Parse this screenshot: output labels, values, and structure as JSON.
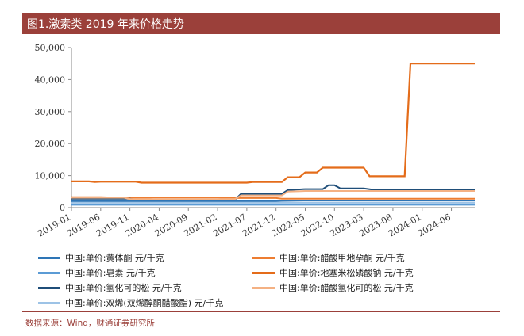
{
  "header": {
    "title": "图1.激素类 2019 年来价格走势"
  },
  "footer": {
    "source": "数据来源：Wind，财通证券研究所"
  },
  "colors": {
    "title_bg": "#9b403a",
    "axis": "#888888",
    "grid": "#d9d9d9"
  },
  "chart_data": {
    "type": "line",
    "title": "",
    "xlabel": "",
    "ylabel": "",
    "ylim": [
      0,
      50000
    ],
    "yticks": [
      0,
      10000,
      20000,
      30000,
      40000,
      50000
    ],
    "ytick_labels": [
      "0",
      "10,000",
      "20,000",
      "30,000",
      "40,000",
      "50,000"
    ],
    "xlim": [
      "2019-01",
      "2024-10"
    ],
    "xticks": [
      "2019-01",
      "2019-06",
      "2019-11",
      "2020-04",
      "2020-09",
      "2021-02",
      "2021-07",
      "2021-12",
      "2022-05",
      "2022-10",
      "2023-03",
      "2023-08",
      "2024-01",
      "2024-06"
    ],
    "grid": false,
    "legend_position": "bottom",
    "series": [
      {
        "name": "中国:单价:黄体酮 元/千克",
        "color": "#2e75b6",
        "width": 2,
        "points": [
          [
            "2019-01",
            2000
          ],
          [
            "2021-12",
            2000
          ],
          [
            "2022-01",
            2100
          ],
          [
            "2022-05",
            2200
          ],
          [
            "2024-10",
            2200
          ]
        ]
      },
      {
        "name": "中国:单价:醋酸甲地孕酮 元/千克",
        "color": "#ed7d31",
        "width": 2,
        "points": [
          [
            "2019-01",
            3300
          ],
          [
            "2019-06",
            3300
          ],
          [
            "2019-11",
            3000
          ],
          [
            "2020-02",
            3000
          ],
          [
            "2020-03",
            3200
          ],
          [
            "2021-02",
            3200
          ],
          [
            "2021-03",
            3000
          ],
          [
            "2021-12",
            3000
          ],
          [
            "2022-01",
            2800
          ],
          [
            "2022-07",
            2800
          ],
          [
            "2024-10",
            2800
          ]
        ]
      },
      {
        "name": "中国:单价:皂素 元/千克",
        "color": "#5b9bd5",
        "width": 2,
        "points": [
          [
            "2019-01",
            900
          ],
          [
            "2024-10",
            900
          ]
        ]
      },
      {
        "name": "中国:单价:地塞米松磷酸钠 元/千克",
        "color": "#e46c1a",
        "width": 2.2,
        "points": [
          [
            "2019-01",
            8200
          ],
          [
            "2019-04",
            8200
          ],
          [
            "2019-05",
            8000
          ],
          [
            "2019-06",
            8100
          ],
          [
            "2019-12",
            8100
          ],
          [
            "2020-01",
            7800
          ],
          [
            "2021-07",
            7800
          ],
          [
            "2021-08",
            8000
          ],
          [
            "2022-01",
            8000
          ],
          [
            "2022-02",
            9500
          ],
          [
            "2022-04",
            9500
          ],
          [
            "2022-05",
            11000
          ],
          [
            "2022-07",
            11000
          ],
          [
            "2022-08",
            12500
          ],
          [
            "2023-03",
            12500
          ],
          [
            "2023-04",
            9800
          ],
          [
            "2023-10",
            9800
          ],
          [
            "2023-11",
            45000
          ],
          [
            "2024-10",
            45000
          ]
        ]
      },
      {
        "name": "中国:单价:氢化可的松 元/千克",
        "color": "#1f4e79",
        "width": 2,
        "points": [
          [
            "2019-01",
            2800
          ],
          [
            "2019-11",
            2800
          ],
          [
            "2019-12",
            2500
          ],
          [
            "2021-05",
            2500
          ],
          [
            "2021-06",
            4300
          ],
          [
            "2022-01",
            4300
          ],
          [
            "2022-02",
            5500
          ],
          [
            "2022-05",
            5800
          ],
          [
            "2022-08",
            5800
          ],
          [
            "2022-09",
            7000
          ],
          [
            "2022-10",
            7000
          ],
          [
            "2022-11",
            6000
          ],
          [
            "2023-03",
            6000
          ],
          [
            "2023-05",
            5500
          ],
          [
            "2024-10",
            5500
          ]
        ]
      },
      {
        "name": "中国:单价:醋酸氢化可的松 元/千克",
        "color": "#f4b183",
        "width": 2,
        "points": [
          [
            "2019-01",
            3100
          ],
          [
            "2019-10",
            3100
          ],
          [
            "2019-11",
            2700
          ],
          [
            "2021-05",
            2700
          ],
          [
            "2021-06",
            3800
          ],
          [
            "2022-01",
            3800
          ],
          [
            "2022-02",
            5000
          ],
          [
            "2022-05",
            5200
          ],
          [
            "2024-10",
            5200
          ]
        ]
      },
      {
        "name": "中国:单价:双烯(双烯醇酮醋酸酯) 元/千克",
        "color": "#9dc3e6",
        "width": 2,
        "points": [
          [
            "2019-01",
            1500
          ],
          [
            "2024-10",
            1500
          ]
        ]
      }
    ]
  }
}
